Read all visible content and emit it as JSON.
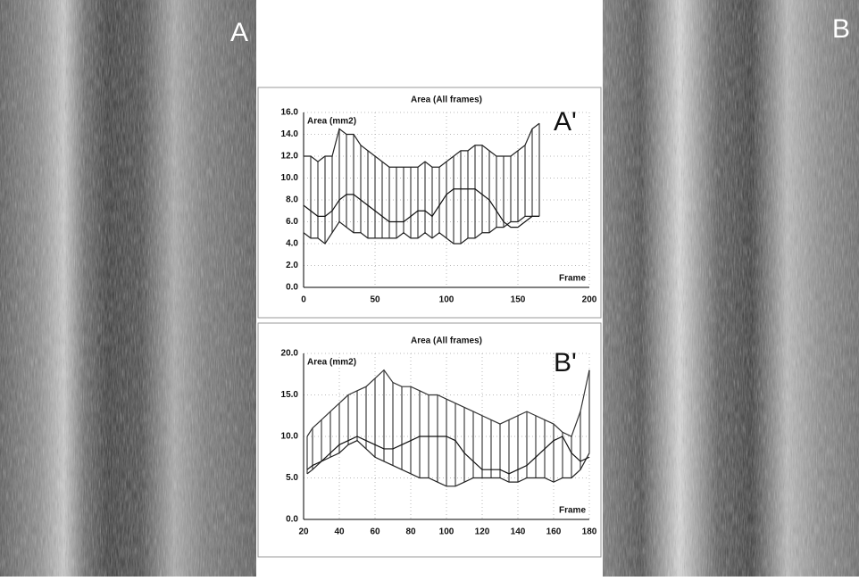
{
  "images": {
    "left_label": "A",
    "right_label": "B"
  },
  "chart_data": [
    {
      "type": "line",
      "title": "Area (All frames)",
      "y_label": "Area (mm2)",
      "x_label": "Frame",
      "annotation": "A'",
      "xlim": [
        0,
        200
      ],
      "xticks": [
        0,
        50,
        100,
        150,
        200
      ],
      "ylim": [
        0,
        16
      ],
      "yticks": [
        {
          "value": 0,
          "label": "0.0"
        },
        {
          "value": 2,
          "label": "2.0"
        },
        {
          "value": 4,
          "label": "4.0"
        },
        {
          "value": 6,
          "label": "6.0"
        },
        {
          "value": 8,
          "label": "8.0"
        },
        {
          "value": 10,
          "label": "10.0"
        },
        {
          "value": 12,
          "label": "12.0"
        },
        {
          "value": 14,
          "label": "14.0"
        },
        {
          "value": 16,
          "label": "16.0"
        }
      ],
      "grid": true,
      "x": [
        0,
        5,
        10,
        15,
        20,
        25,
        30,
        35,
        40,
        45,
        50,
        55,
        60,
        65,
        70,
        75,
        80,
        85,
        90,
        95,
        100,
        105,
        110,
        115,
        120,
        125,
        130,
        135,
        140,
        145,
        150,
        155,
        160,
        165
      ],
      "series": [
        {
          "color": "#222222",
          "values": [
            12,
            12,
            11.5,
            12,
            12,
            14.5,
            14,
            14,
            13,
            12.5,
            12,
            11.5,
            11,
            11,
            11,
            11,
            11,
            11.5,
            11,
            11,
            11.5,
            12,
            12.5,
            12.5,
            13,
            13,
            12.5,
            12,
            12,
            12,
            12.5,
            13,
            14.5,
            15
          ]
        },
        {
          "color": "#222222",
          "values": [
            5,
            4.5,
            4.5,
            4,
            5,
            6,
            5.5,
            5,
            5,
            4.5,
            4.5,
            4.5,
            4.5,
            4.5,
            5,
            4.5,
            4.5,
            5,
            4.5,
            5,
            4.5,
            4,
            4,
            4.5,
            4.5,
            5,
            5,
            5.5,
            5.5,
            6,
            6,
            6.5,
            6.5,
            6.5
          ]
        },
        {
          "color": "#111111",
          "values": [
            7.5,
            7,
            6.5,
            6.5,
            7,
            8,
            8.5,
            8.5,
            8,
            7.5,
            7,
            6.5,
            6,
            6,
            6,
            6.5,
            7,
            7,
            6.5,
            7.5,
            8.5,
            9,
            9,
            9,
            9,
            8.5,
            8,
            7,
            6,
            5.5,
            5.5,
            6,
            6.5,
            6.5
          ]
        }
      ]
    },
    {
      "type": "line",
      "title": "Area (All frames)",
      "y_label": "Area (mm2)",
      "x_label": "Frame",
      "annotation": "B'",
      "xlim": [
        20,
        180
      ],
      "xticks": [
        20,
        40,
        60,
        80,
        100,
        120,
        140,
        160,
        180
      ],
      "ylim": [
        0,
        20
      ],
      "yticks": [
        {
          "value": 0,
          "label": "0.0"
        },
        {
          "value": 5,
          "label": "5.0"
        },
        {
          "value": 10,
          "label": "10.0"
        },
        {
          "value": 15,
          "label": "15.0"
        },
        {
          "value": 20,
          "label": "20.0"
        }
      ],
      "grid": true,
      "x": [
        22,
        25,
        30,
        35,
        40,
        45,
        50,
        55,
        60,
        65,
        70,
        75,
        80,
        85,
        90,
        95,
        100,
        105,
        110,
        115,
        120,
        125,
        130,
        135,
        140,
        145,
        150,
        155,
        160,
        165,
        170,
        175,
        180
      ],
      "series": [
        {
          "color": "#333333",
          "values": [
            10,
            11,
            12,
            13,
            14,
            15,
            15.5,
            16,
            17,
            18,
            16.5,
            16,
            16,
            15.5,
            15,
            15,
            14.5,
            14,
            13.5,
            13,
            12.5,
            12,
            11.5,
            12,
            12.5,
            13,
            12.5,
            12,
            11.5,
            10.5,
            10,
            13,
            18
          ]
        },
        {
          "color": "#222222",
          "values": [
            5.5,
            6,
            7,
            7.5,
            8,
            9,
            9.5,
            8.5,
            7.5,
            7,
            6.5,
            6,
            5.5,
            5,
            5,
            4.5,
            4,
            4,
            4.5,
            5,
            5,
            5,
            5,
            4.5,
            4.5,
            5,
            5,
            5,
            4.5,
            5,
            5,
            6,
            8
          ]
        },
        {
          "color": "#111111",
          "values": [
            6,
            6.5,
            7,
            8,
            9,
            9.5,
            10,
            9.5,
            9,
            8.5,
            8.5,
            9,
            9.5,
            10,
            10,
            10,
            10,
            9.5,
            8,
            7,
            6,
            6,
            6,
            5.5,
            6,
            6.5,
            7.5,
            8.5,
            9.5,
            10,
            8,
            7,
            7.5
          ]
        }
      ]
    }
  ]
}
